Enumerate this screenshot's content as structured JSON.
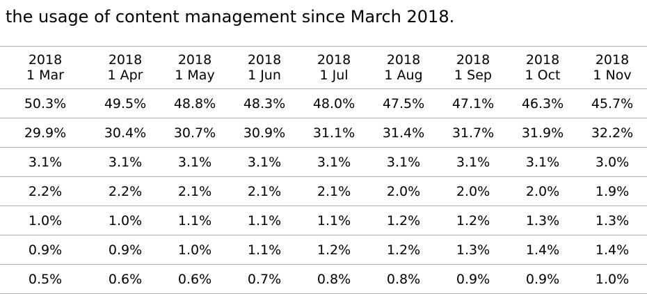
{
  "caption": "the usage of content management since March 2018.",
  "columns": [
    {
      "year": "2018",
      "date": "1 Mar"
    },
    {
      "year": "2018",
      "date": "1 Apr"
    },
    {
      "year": "2018",
      "date": "1 May"
    },
    {
      "year": "2018",
      "date": "1 Jun"
    },
    {
      "year": "2018",
      "date": "1 Jul"
    },
    {
      "year": "2018",
      "date": "1 Aug"
    },
    {
      "year": "2018",
      "date": "1 Sep"
    },
    {
      "year": "2018",
      "date": "1 Oct"
    },
    {
      "year": "2018",
      "date": "1 Nov"
    }
  ],
  "rows": [
    [
      "50.3%",
      "49.5%",
      "48.8%",
      "48.3%",
      "48.0%",
      "47.5%",
      "47.1%",
      "46.3%",
      "45.7%"
    ],
    [
      "29.9%",
      "30.4%",
      "30.7%",
      "30.9%",
      "31.1%",
      "31.4%",
      "31.7%",
      "31.9%",
      "32.2%"
    ],
    [
      "3.1%",
      "3.1%",
      "3.1%",
      "3.1%",
      "3.1%",
      "3.1%",
      "3.1%",
      "3.1%",
      "3.0%"
    ],
    [
      "2.2%",
      "2.2%",
      "2.1%",
      "2.1%",
      "2.1%",
      "2.0%",
      "2.0%",
      "2.0%",
      "1.9%"
    ],
    [
      "1.0%",
      "1.0%",
      "1.1%",
      "1.1%",
      "1.1%",
      "1.2%",
      "1.2%",
      "1.3%",
      "1.3%"
    ],
    [
      "0.9%",
      "0.9%",
      "1.0%",
      "1.1%",
      "1.2%",
      "1.2%",
      "1.3%",
      "1.4%",
      "1.4%"
    ],
    [
      "0.5%",
      "0.6%",
      "0.6%",
      "0.7%",
      "0.8%",
      "0.8%",
      "0.9%",
      "0.9%",
      "1.0%"
    ]
  ]
}
